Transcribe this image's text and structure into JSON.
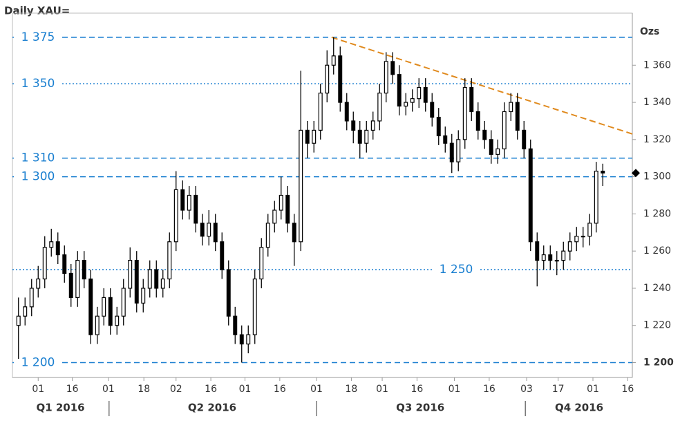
{
  "chart_data": {
    "type": "candlestick",
    "title": "Daily XAU=",
    "y_axis_label": "Ozs",
    "open": [
      1220,
      1225,
      1230,
      1240,
      1245,
      1262,
      1265,
      1258,
      1248,
      1235,
      1255,
      1245,
      1215,
      1225,
      1235,
      1220,
      1225,
      1240,
      1255,
      1232,
      1240,
      1250,
      1240,
      1245,
      1265,
      1293,
      1282,
      1290,
      1275,
      1268,
      1275,
      1265,
      1250,
      1225,
      1215,
      1210,
      1215,
      1245,
      1262,
      1275,
      1282,
      1290,
      1275,
      1265,
      1325,
      1318,
      1325,
      1345,
      1360,
      1365,
      1340,
      1330,
      1325,
      1318,
      1325,
      1330,
      1345,
      1362,
      1355,
      1338,
      1340,
      1342,
      1348,
      1340,
      1332,
      1322,
      1318,
      1308,
      1320,
      1348,
      1335,
      1325,
      1320,
      1312,
      1315,
      1335,
      1340,
      1325,
      1315,
      1265,
      1255,
      1258,
      1255,
      1255,
      1260,
      1265,
      1268,
      1268,
      1275,
      1303
    ],
    "high": [
      1235,
      1235,
      1245,
      1252,
      1268,
      1272,
      1270,
      1263,
      1253,
      1260,
      1260,
      1250,
      1230,
      1240,
      1240,
      1230,
      1245,
      1262,
      1260,
      1245,
      1255,
      1255,
      1250,
      1270,
      1303,
      1298,
      1295,
      1295,
      1280,
      1282,
      1280,
      1270,
      1255,
      1230,
      1220,
      1220,
      1250,
      1267,
      1280,
      1287,
      1300,
      1295,
      1280,
      1357,
      1330,
      1330,
      1350,
      1368,
      1375,
      1370,
      1345,
      1335,
      1330,
      1330,
      1335,
      1350,
      1367,
      1367,
      1360,
      1345,
      1347,
      1353,
      1353,
      1345,
      1337,
      1327,
      1323,
      1325,
      1353,
      1353,
      1340,
      1330,
      1325,
      1320,
      1340,
      1345,
      1345,
      1330,
      1320,
      1270,
      1263,
      1263,
      1260,
      1265,
      1270,
      1273,
      1273,
      1280,
      1308,
      1307
    ],
    "low": [
      1202,
      1220,
      1225,
      1235,
      1240,
      1257,
      1253,
      1243,
      1230,
      1230,
      1240,
      1210,
      1210,
      1220,
      1215,
      1215,
      1220,
      1235,
      1227,
      1227,
      1235,
      1235,
      1235,
      1240,
      1260,
      1277,
      1277,
      1270,
      1263,
      1263,
      1260,
      1245,
      1220,
      1210,
      1200,
      1205,
      1210,
      1240,
      1257,
      1270,
      1277,
      1270,
      1252,
      1260,
      1310,
      1313,
      1320,
      1340,
      1355,
      1335,
      1325,
      1318,
      1310,
      1313,
      1320,
      1325,
      1340,
      1350,
      1333,
      1333,
      1335,
      1337,
      1335,
      1327,
      1317,
      1313,
      1302,
      1303,
      1315,
      1330,
      1320,
      1315,
      1307,
      1307,
      1310,
      1330,
      1320,
      1310,
      1260,
      1241,
      1250,
      1250,
      1247,
      1250,
      1255,
      1260,
      1262,
      1263,
      1270,
      1295
    ],
    "close": [
      1225,
      1230,
      1240,
      1245,
      1262,
      1265,
      1258,
      1248,
      1235,
      1255,
      1245,
      1215,
      1225,
      1235,
      1220,
      1225,
      1240,
      1255,
      1232,
      1240,
      1250,
      1240,
      1245,
      1265,
      1293,
      1282,
      1290,
      1275,
      1268,
      1275,
      1265,
      1250,
      1225,
      1215,
      1210,
      1215,
      1245,
      1262,
      1275,
      1282,
      1290,
      1275,
      1265,
      1325,
      1318,
      1325,
      1345,
      1360,
      1365,
      1340,
      1330,
      1325,
      1318,
      1325,
      1330,
      1345,
      1362,
      1355,
      1338,
      1340,
      1342,
      1348,
      1340,
      1332,
      1322,
      1318,
      1308,
      1320,
      1348,
      1335,
      1325,
      1320,
      1312,
      1315,
      1335,
      1340,
      1325,
      1315,
      1265,
      1255,
      1258,
      1255,
      1255,
      1260,
      1265,
      1268,
      1268,
      1275,
      1303,
      1302
    ],
    "color": "#000000",
    "xlim": [
      0,
      94
    ],
    "xticks": [
      {
        "value": 3.5,
        "label": "01"
      },
      {
        "value": 8.7,
        "label": "16"
      },
      {
        "value": 14.2,
        "label": "01"
      },
      {
        "value": 19.6,
        "label": "18"
      },
      {
        "value": 24.5,
        "label": "02"
      },
      {
        "value": 29.8,
        "label": "16"
      },
      {
        "value": 35,
        "label": "01"
      },
      {
        "value": 40.3,
        "label": "16"
      },
      {
        "value": 45.9,
        "label": "01"
      },
      {
        "value": 51.2,
        "label": "18"
      },
      {
        "value": 55.9,
        "label": "01"
      },
      {
        "value": 61.2,
        "label": "16"
      },
      {
        "value": 66.9,
        "label": "01"
      },
      {
        "value": 72.2,
        "label": "16"
      },
      {
        "value": 77.9,
        "label": "03"
      },
      {
        "value": 82.7,
        "label": "17"
      },
      {
        "value": 88,
        "label": "01"
      },
      {
        "value": 93.3,
        "label": "16"
      }
    ],
    "quarters": {
      "labels": [
        "Q1 2016",
        "Q2 2016",
        "Q3 2016",
        "Q4 2016"
      ],
      "centers": [
        6.9,
        30,
        61.7,
        85.9
      ],
      "dividers": [
        14.3,
        45.9,
        77.7
      ]
    },
    "ylim": [
      1192,
      1388
    ],
    "yticks": [
      {
        "value": 1200,
        "label": "1 200"
      },
      {
        "value": 1220,
        "label": "1 220"
      },
      {
        "value": 1240,
        "label": "1 240"
      },
      {
        "value": 1260,
        "label": "1 260"
      },
      {
        "value": 1280,
        "label": "1 280"
      },
      {
        "value": 1300,
        "label": "1 300"
      },
      {
        "value": 1320,
        "label": "1 320"
      },
      {
        "value": 1340,
        "label": "1 340"
      },
      {
        "value": 1360,
        "label": "1 360"
      }
    ],
    "levels": [
      {
        "value": 1375,
        "label": "1 375",
        "style": "dashed",
        "position": "left"
      },
      {
        "value": 1350,
        "label": "1 350",
        "style": "dotted",
        "position": "left"
      },
      {
        "value": 1310,
        "label": "1 310",
        "style": "dashed",
        "position": "left"
      },
      {
        "value": 1300,
        "label": "1 300",
        "style": "dashed",
        "position": "left"
      },
      {
        "value": 1250,
        "label": "1 250",
        "style": "dotted",
        "position": "center"
      },
      {
        "value": 1200,
        "label": "1 200",
        "style": "dashed",
        "position": "left"
      }
    ],
    "level_color": "#1a7fd0",
    "trend_line": {
      "x": [
        48.2,
        94
      ],
      "y": [
        1375,
        1323
      ],
      "color": "#e08a1e"
    },
    "last_value_marker": 1302
  }
}
